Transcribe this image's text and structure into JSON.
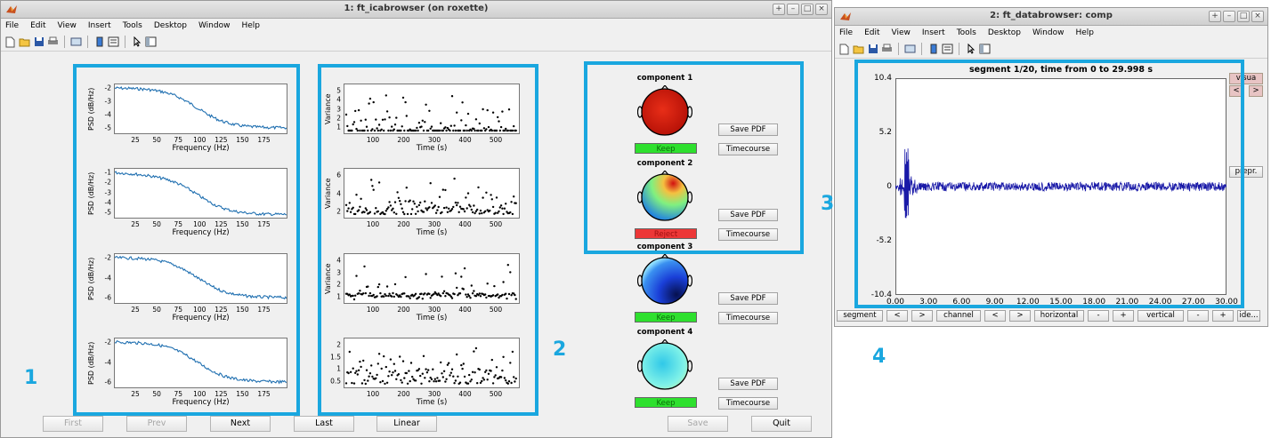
{
  "window1": {
    "title": "1: ft_icabrowser (on roxette)",
    "menu": [
      "File",
      "Edit",
      "View",
      "Insert",
      "Tools",
      "Desktop",
      "Window",
      "Help"
    ],
    "psd_panels": [
      {
        "ylabel": "PSD (dB/Hz)",
        "xlabel": "Frequency (Hz)",
        "yticks": [
          "-2",
          "-3",
          "-4",
          "-5"
        ],
        "xticks": [
          "25",
          "50",
          "75",
          "100",
          "125",
          "150",
          "175"
        ]
      },
      {
        "ylabel": "PSD (dB/Hz)",
        "xlabel": "Frequency (Hz)",
        "yticks": [
          "-1",
          "-2",
          "-3",
          "-4",
          "-5"
        ],
        "xticks": [
          "25",
          "50",
          "75",
          "100",
          "125",
          "150",
          "175"
        ]
      },
      {
        "ylabel": "PSD (dB/Hz)",
        "xlabel": "Frequency (Hz)",
        "yticks": [
          "-2",
          "-4",
          "-6"
        ],
        "xticks": [
          "25",
          "50",
          "75",
          "100",
          "125",
          "150",
          "175"
        ]
      },
      {
        "ylabel": "PSD (dB/Hz)",
        "xlabel": "Frequency (Hz)",
        "yticks": [
          "-2",
          "-4",
          "-6"
        ],
        "xticks": [
          "25",
          "50",
          "75",
          "100",
          "125",
          "150",
          "175"
        ]
      }
    ],
    "var_panels": [
      {
        "ylabel": "Variance",
        "xlabel": "Time (s)",
        "yticks": [
          "5",
          "4",
          "3",
          "2",
          "1"
        ],
        "xticks": [
          "100",
          "200",
          "300",
          "400",
          "500"
        ]
      },
      {
        "ylabel": "Variance",
        "xlabel": "Time (s)",
        "yticks": [
          "6",
          "4",
          "2"
        ],
        "xticks": [
          "100",
          "200",
          "300",
          "400",
          "500"
        ]
      },
      {
        "ylabel": "Variance",
        "xlabel": "Time (s)",
        "yticks": [
          "4",
          "3",
          "2",
          "1"
        ],
        "xticks": [
          "100",
          "200",
          "300",
          "400",
          "500"
        ]
      },
      {
        "ylabel": "",
        "xlabel": "Time (s)",
        "yticks": [
          "2",
          "1.5",
          "1",
          "0.5"
        ],
        "xticks": [
          "100",
          "200",
          "300",
          "400",
          "500"
        ]
      }
    ],
    "components": [
      {
        "label": "component 1",
        "status": "Keep",
        "save": "Save PDF",
        "timecourse": "Timecourse"
      },
      {
        "label": "component 2",
        "status": "Reject",
        "save": "Save PDF",
        "timecourse": "Timecourse"
      },
      {
        "label": "component 3",
        "status": "Keep",
        "save": "Save PDF",
        "timecourse": "Timecourse"
      },
      {
        "label": "component 4",
        "status": "Keep",
        "save": "Save PDF",
        "timecourse": "Timecourse"
      }
    ],
    "nav": {
      "first": "First",
      "prev": "Prev",
      "next": "Next",
      "last": "Last",
      "linear": "Linear",
      "save": "Save",
      "quit": "Quit"
    }
  },
  "window2": {
    "title": "2: ft_databrowser: comp",
    "menu": [
      "File",
      "Edit",
      "View",
      "Insert",
      "Tools",
      "Desktop",
      "Window",
      "Help"
    ],
    "plot_title": "segment 1/20, time from 0 to 29.998 s",
    "yticks": [
      "10.4",
      "5.2",
      "0",
      "-5.2",
      "-10.4"
    ],
    "xticks": [
      "0.00",
      "3.00",
      "6.00",
      "9.00",
      "12.00",
      "15.00",
      "18.00",
      "21.00",
      "24.00",
      "27.00",
      "30.00"
    ],
    "side_buttons": {
      "visual": "visua",
      "lt": "<",
      "gt": ">",
      "prepr": "prepr."
    },
    "bottom": {
      "segment": "segment",
      "seg_prev": "<",
      "seg_next": ">",
      "channel": "channel",
      "ch_prev": "<",
      "ch_next": ">",
      "horizontal": "horizontal",
      "h_minus": "-",
      "h_plus": "+",
      "vertical": "vertical",
      "v_minus": "-",
      "v_plus": "+",
      "ide": "ide..."
    }
  },
  "annotations": [
    "1",
    "2",
    "3",
    "4"
  ],
  "colors": {
    "highlight": "#1aa7df",
    "psd_line": "#1f6fb0",
    "keep": "#2ee02e",
    "reject": "#ec3737",
    "trace": "#1a1aa8"
  }
}
